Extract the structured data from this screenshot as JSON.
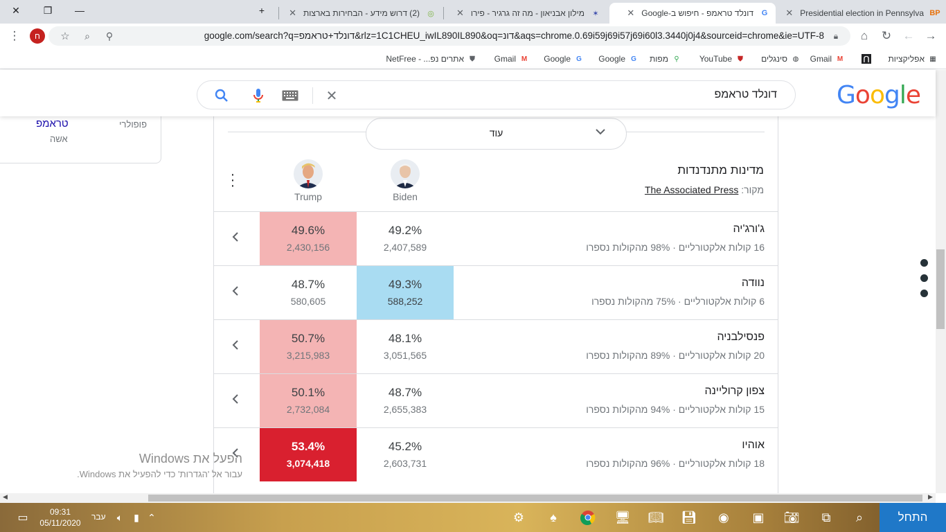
{
  "browser": {
    "tabs": [
      {
        "title": "Presidential election in Pennsylva",
        "favicon": "BP",
        "active": false
      },
      {
        "title": "דונלד טראמפ - חיפוש ב-Google",
        "favicon": "G",
        "active": true
      },
      {
        "title": "מילון אבניאון - מה זה גרגיר - פירו",
        "favicon": "✶",
        "active": false
      },
      {
        "title": "(2) דרוש מידע - הבחירות בארצות",
        "favicon": "◎",
        "active": false
      }
    ],
    "new_tab_label": "+",
    "url": "google.com/search?q=דונלד+טראמפ&rlz=1C1CHEU_iwIL890IL890&oq=דונ&aqs=chrome.0.69i59j69i57j69i60l3.3440j0j4&sourceid=chrome&ie=UTF-8",
    "profile_initial": "ח",
    "bookmarks": [
      {
        "label": "אפליקציות",
        "icon": "apps-icon"
      },
      {
        "label": "",
        "icon": "arch-icon"
      },
      {
        "label": "Gmail",
        "icon": "gmail-icon"
      },
      {
        "label": "סינגלים",
        "icon": "globe-icon"
      },
      {
        "label": "YouTube",
        "icon": "shield-icon"
      },
      {
        "label": "מפות",
        "icon": "maps-icon"
      },
      {
        "label": "Google",
        "icon": "google-icon"
      },
      {
        "label": "Google",
        "icon": "google-icon"
      },
      {
        "label": "Gmail",
        "icon": "gmail-icon"
      },
      {
        "label": "אתרים נפ... - NetFree",
        "icon": "shield-icon"
      }
    ]
  },
  "search": {
    "query": "דונלד טראמפ",
    "logo": "Google"
  },
  "knowledge_panel": {
    "label": "פופולרי",
    "name": "טראמפ",
    "sub": "אשה"
  },
  "more_button": {
    "label": "עוד"
  },
  "election": {
    "title": "מדינות מתנדנדות",
    "source_prefix": "מקור:",
    "source_name": "The Associated Press",
    "candidates": {
      "trump": {
        "name": "Trump"
      },
      "biden": {
        "name": "Biden"
      }
    },
    "states": [
      {
        "name": "ג'ורג'יה",
        "info": "16 קולות אלקטורליים · 98% מהקולות נספרו",
        "trump_pct": "49.6%",
        "trump_votes": "2,430,156",
        "biden_pct": "49.2%",
        "biden_votes": "2,407,589",
        "trump_class": "trump-lean",
        "biden_class": ""
      },
      {
        "name": "נוודה",
        "info": "6 קולות אלקטורליים · 75% מהקולות נספרו",
        "trump_pct": "48.7%",
        "trump_votes": "580,605",
        "biden_pct": "49.3%",
        "biden_votes": "588,252",
        "trump_class": "",
        "biden_class": "biden-lean"
      },
      {
        "name": "פנסילבניה",
        "info": "20 קולות אלקטורליים · 89% מהקולות נספרו",
        "trump_pct": "50.7%",
        "trump_votes": "3,215,983",
        "biden_pct": "48.1%",
        "biden_votes": "3,051,565",
        "trump_class": "trump-lean",
        "biden_class": ""
      },
      {
        "name": "צפון קרוליינה",
        "info": "15 קולות אלקטורליים · 94% מהקולות נספרו",
        "trump_pct": "50.1%",
        "trump_votes": "2,732,084",
        "biden_pct": "48.7%",
        "biden_votes": "2,655,383",
        "trump_class": "trump-lean",
        "biden_class": ""
      },
      {
        "name": "אוהיו",
        "info": "18 קולות אלקטורליים · 96% מהקולות נספרו",
        "trump_pct": "53.4%",
        "trump_votes": "3,074,418",
        "biden_pct": "45.2%",
        "biden_votes": "2,603,731",
        "trump_class": "trump-solid",
        "biden_class": ""
      }
    ],
    "colors": {
      "trump_lean": "#f4b4b4",
      "trump_solid": "#d9202f",
      "biden_lean": "#a9dcf2"
    }
  },
  "windows_activation": {
    "line1": "הפעל את Windows",
    "line2": "עבור אל 'הגדרות' כדי להפעיל את Windows."
  },
  "taskbar": {
    "start_label": "התחל",
    "time": "09:31",
    "date": "05/11/2020",
    "language": "עבר"
  }
}
